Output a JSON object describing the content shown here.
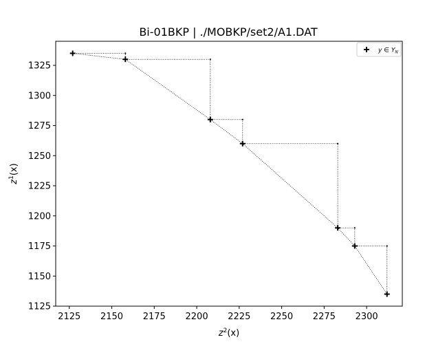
{
  "chart_data": {
    "type": "scatter",
    "title": "Bi-01BKP | ./MOBKP/set2/A1.DAT",
    "xlabel": {
      "base": "z",
      "sup": "2",
      "suffix": "(x)"
    },
    "ylabel": {
      "base": "z",
      "sup": "1",
      "suffix": "(x)"
    },
    "xlim": [
      2117,
      2321
    ],
    "ylim": [
      1125,
      1345
    ],
    "xticks": [
      2125,
      2150,
      2175,
      2200,
      2225,
      2250,
      2275,
      2300
    ],
    "yticks": [
      1125,
      1150,
      1175,
      1200,
      1225,
      1250,
      1275,
      1300,
      1325
    ],
    "grid": false,
    "legend": {
      "position": "top-right",
      "label": "y ∈ Y_N",
      "marker": "+"
    },
    "series": [
      {
        "name": "y ∈ Y_N",
        "points": [
          {
            "x": 2127,
            "y": 1335
          },
          {
            "x": 2158,
            "y": 1330
          },
          {
            "x": 2208,
            "y": 1280
          },
          {
            "x": 2227,
            "y": 1260
          },
          {
            "x": 2283,
            "y": 1190
          },
          {
            "x": 2293,
            "y": 1175
          },
          {
            "x": 2312,
            "y": 1135
          }
        ]
      }
    ],
    "staircase_corners": [
      {
        "x": 2158,
        "y": 1335
      },
      {
        "x": 2208,
        "y": 1330
      },
      {
        "x": 2227,
        "y": 1280
      },
      {
        "x": 2283,
        "y": 1260
      },
      {
        "x": 2293,
        "y": 1190
      },
      {
        "x": 2312,
        "y": 1175
      }
    ]
  }
}
